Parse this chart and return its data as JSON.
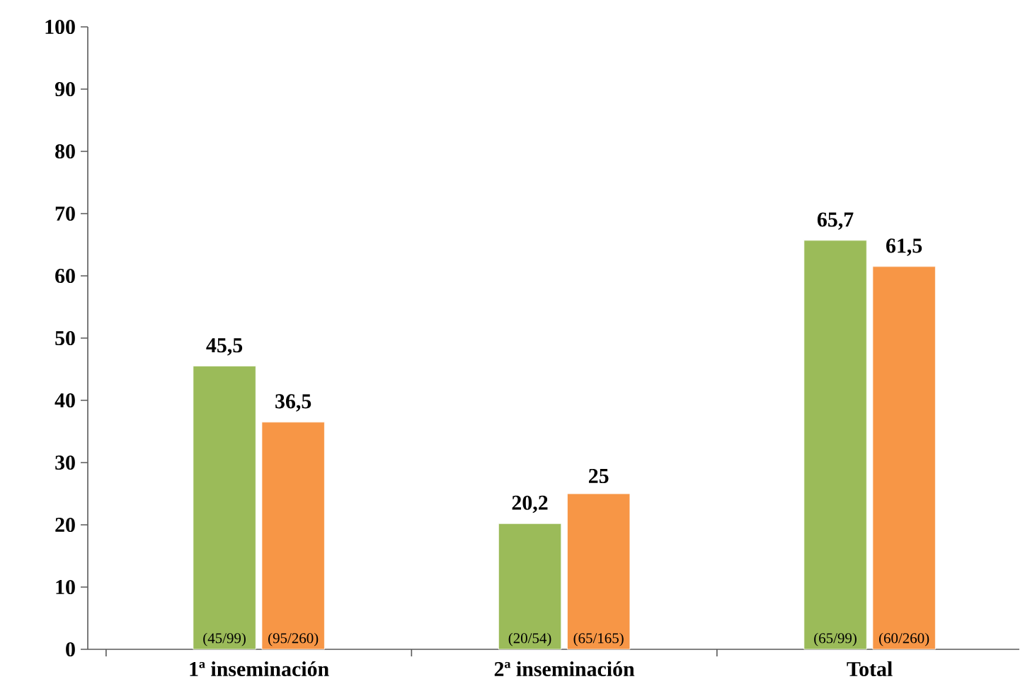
{
  "chart_data": {
    "type": "bar",
    "categories": [
      "1ª inseminación",
      "2ª inseminación",
      "Total"
    ],
    "series": [
      {
        "color": "#9bbb59",
        "values": [
          45.5,
          20.2,
          65.7
        ],
        "value_labels": [
          "45,5",
          "20,2",
          "65,7"
        ]
      },
      {
        "color": "#f79646",
        "values": [
          36.5,
          25,
          61.5
        ],
        "value_labels": [
          "36,5",
          "25",
          "61,5"
        ]
      }
    ],
    "annotations": [
      "(45/99)",
      "(95/260)",
      "(20/54)",
      "(65/165)",
      "(65/99)",
      "(60/260)"
    ],
    "ylim": [
      0,
      100
    ],
    "yticks": [
      0,
      10,
      20,
      30,
      40,
      50,
      60,
      70,
      80,
      90,
      100
    ],
    "grid": false
  }
}
